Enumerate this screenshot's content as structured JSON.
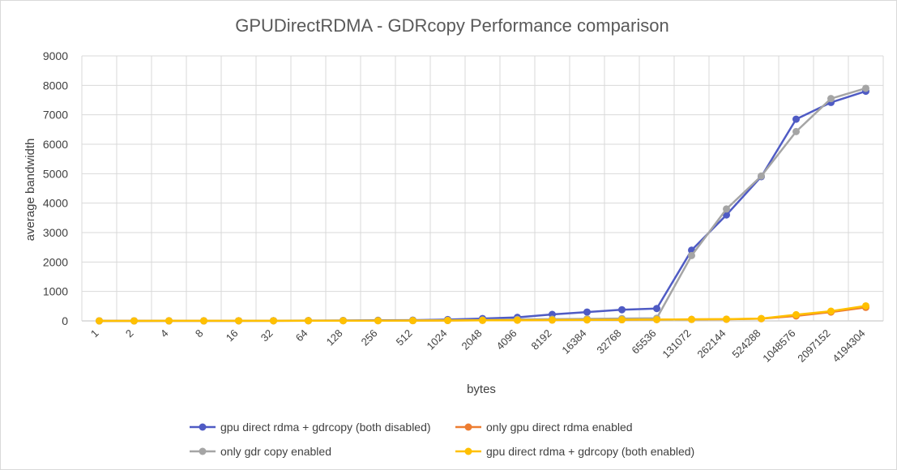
{
  "chart_data": {
    "type": "line",
    "title": "GPUDirectRDMA - GDRcopy Performance comparison",
    "xlabel": "bytes",
    "ylabel": "average bandwidth",
    "ylim": [
      0,
      9000
    ],
    "yticks": [
      0,
      1000,
      2000,
      3000,
      4000,
      5000,
      6000,
      7000,
      8000,
      9000
    ],
    "grid": true,
    "legend_position": "bottom",
    "categories": [
      "1",
      "2",
      "4",
      "8",
      "16",
      "32",
      "64",
      "128",
      "256",
      "512",
      "1024",
      "2048",
      "4096",
      "8192",
      "16384",
      "32768",
      "65536",
      "131072",
      "262144",
      "524288",
      "1048576",
      "2097152",
      "4194304"
    ],
    "series": [
      {
        "name": "gpu direct rdma + gdrcopy (both disabled)",
        "color": "#4f5bc4",
        "values": [
          0.5,
          1,
          2,
          3,
          5,
          8,
          12,
          15,
          20,
          25,
          45,
          80,
          120,
          220,
          300,
          380,
          420,
          2400,
          3600,
          4900,
          6850,
          7420,
          7800
        ]
      },
      {
        "name": "only gpu direct rdma enabled",
        "color": "#ed7d31",
        "values": [
          0.5,
          1,
          2,
          3,
          4,
          5,
          6,
          7,
          8,
          10,
          15,
          20,
          25,
          30,
          35,
          40,
          45,
          50,
          55,
          75,
          170,
          300,
          460
        ]
      },
      {
        "name": "only gdr copy enabled",
        "color": "#a5a5a5",
        "values": [
          0.5,
          1,
          2,
          3,
          4,
          5,
          6,
          8,
          10,
          12,
          20,
          30,
          50,
          60,
          70,
          80,
          90,
          2220,
          3800,
          4920,
          6430,
          7550,
          7900
        ]
      },
      {
        "name": "gpu direct rdma + gdrcopy  (both enabled)",
        "color": "#ffc000",
        "values": [
          0.5,
          1,
          2,
          3,
          4,
          5,
          6,
          7,
          8,
          10,
          15,
          20,
          25,
          30,
          35,
          40,
          45,
          50,
          60,
          80,
          210,
          330,
          510
        ]
      }
    ]
  }
}
